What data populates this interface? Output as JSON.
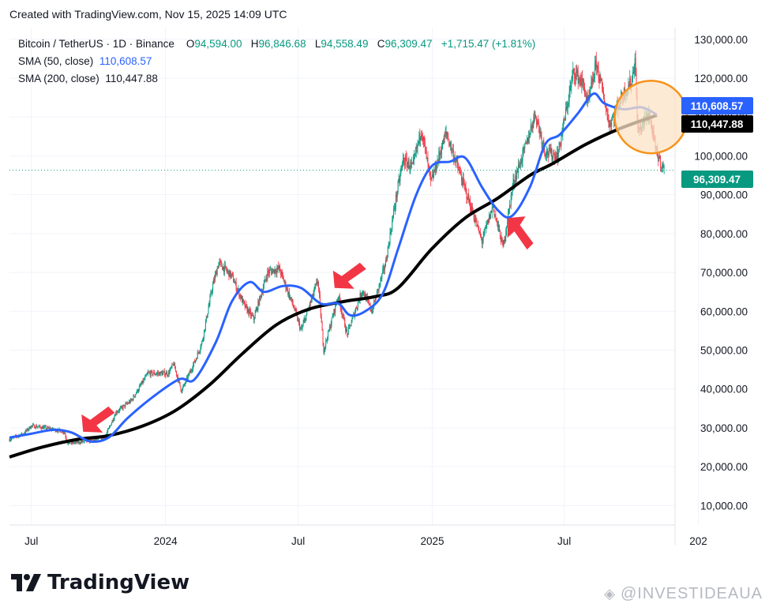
{
  "header": {
    "created": "Created with TradingView.com, Nov 15, 2025 14:09 UTC"
  },
  "legend": {
    "symbol": "Bitcoin / TetherUS · 1D · Binance",
    "o_label": "O",
    "o_value": "94,594.00",
    "h_label": "H",
    "h_value": "96,846.68",
    "l_label": "L",
    "l_value": "94,558.49",
    "c_label": "C",
    "c_value": "96,309.47",
    "change": "+1,715.47 (+1.81%)",
    "sma50_label": "SMA (50, close)",
    "sma50_value": "110,608.57",
    "sma200_label": "SMA (200, close)",
    "sma200_value": "110,447.88"
  },
  "footer": {
    "brand": "TradingView",
    "watermark": "@INVESTIDEAUA"
  },
  "colors": {
    "up": "#089981",
    "down": "#f23645",
    "sma50": "#2962ff",
    "sma200": "#000000",
    "arrow": "#f23645",
    "highlight_fill": "#fce3c6",
    "highlight_stroke": "#f7931a",
    "grid": "#f0f3fa",
    "price_line": "#089981"
  },
  "chart_data": {
    "type": "candlestick",
    "title": "Bitcoin / TetherUS · 1D · Binance",
    "ylim": [
      5000,
      133000
    ],
    "y_ticks": [
      10000,
      20000,
      30000,
      40000,
      50000,
      60000,
      70000,
      80000,
      90000,
      100000,
      110000,
      120000,
      130000
    ],
    "y_tick_labels": [
      "10,000.00",
      "20,000.00",
      "30,000.00",
      "40,000.00",
      "50,000.00",
      "60,000.00",
      "70,000.00",
      "80,000.00",
      "90,000.00",
      "100,000.00",
      "110,000.00",
      "120,000.00",
      "130,000.00"
    ],
    "x_range": [
      "2023-06-01",
      "2025-11-30"
    ],
    "x_ticks": [
      {
        "date": "2023-07-01",
        "label": "Jul"
      },
      {
        "date": "2024-01-01",
        "label": "2024"
      },
      {
        "date": "2024-07-01",
        "label": "Jul"
      },
      {
        "date": "2025-01-01",
        "label": "2025"
      },
      {
        "date": "2025-07-01",
        "label": "Jul"
      },
      {
        "date": "2026-01-01",
        "label": "202"
      }
    ],
    "price_path": [
      [
        "2023-06-01",
        27000
      ],
      [
        "2023-06-20",
        28500
      ],
      [
        "2023-07-01",
        30500
      ],
      [
        "2023-07-20",
        30000
      ],
      [
        "2023-08-15",
        29000
      ],
      [
        "2023-08-20",
        26000
      ],
      [
        "2023-09-15",
        26500
      ],
      [
        "2023-10-10",
        27500
      ],
      [
        "2023-10-25",
        34000
      ],
      [
        "2023-11-15",
        37000
      ],
      [
        "2023-12-08",
        44000
      ],
      [
        "2024-01-05",
        44000
      ],
      [
        "2024-01-12",
        46500
      ],
      [
        "2024-01-23",
        39500
      ],
      [
        "2024-02-10",
        47000
      ],
      [
        "2024-02-20",
        52000
      ],
      [
        "2024-03-05",
        66000
      ],
      [
        "2024-03-14",
        72500
      ],
      [
        "2024-04-01",
        69000
      ],
      [
        "2024-04-18",
        61500
      ],
      [
        "2024-05-01",
        58000
      ],
      [
        "2024-05-20",
        70000
      ],
      [
        "2024-06-05",
        71000
      ],
      [
        "2024-06-25",
        61000
      ],
      [
        "2024-07-05",
        55000
      ],
      [
        "2024-07-28",
        68000
      ],
      [
        "2024-08-05",
        50000
      ],
      [
        "2024-08-25",
        64000
      ],
      [
        "2024-09-06",
        54000
      ],
      [
        "2024-09-27",
        65500
      ],
      [
        "2024-10-10",
        60000
      ],
      [
        "2024-10-29",
        72500
      ],
      [
        "2024-11-12",
        89000
      ],
      [
        "2024-11-22",
        99000
      ],
      [
        "2024-12-05",
        97000
      ],
      [
        "2024-12-17",
        107000
      ],
      [
        "2024-12-30",
        93000
      ],
      [
        "2025-01-20",
        106000
      ],
      [
        "2025-02-05",
        97000
      ],
      [
        "2025-02-28",
        84000
      ],
      [
        "2025-03-10",
        78000
      ],
      [
        "2025-03-25",
        87000
      ],
      [
        "2025-04-08",
        76500
      ],
      [
        "2025-04-22",
        93000
      ],
      [
        "2025-05-10",
        103000
      ],
      [
        "2025-05-22",
        111000
      ],
      [
        "2025-06-05",
        101000
      ],
      [
        "2025-06-22",
        100000
      ],
      [
        "2025-07-14",
        122000
      ],
      [
        "2025-07-28",
        118000
      ],
      [
        "2025-08-02",
        113000
      ],
      [
        "2025-08-14",
        124000
      ],
      [
        "2025-09-01",
        108000
      ],
      [
        "2025-09-20",
        116000
      ],
      [
        "2025-10-01",
        119000
      ],
      [
        "2025-10-06",
        125000
      ],
      [
        "2025-10-10",
        106000
      ],
      [
        "2025-10-25",
        111000
      ],
      [
        "2025-11-04",
        101000
      ],
      [
        "2025-11-15",
        96309
      ]
    ],
    "sma50": [
      [
        "2023-06-01",
        27500
      ],
      [
        "2023-07-01",
        28500
      ],
      [
        "2023-08-01",
        29500
      ],
      [
        "2023-08-25",
        28800
      ],
      [
        "2023-09-20",
        26500
      ],
      [
        "2023-10-15",
        27500
      ],
      [
        "2023-11-10",
        32500
      ],
      [
        "2023-12-15",
        38000
      ],
      [
        "2024-01-20",
        42500
      ],
      [
        "2024-02-10",
        42500
      ],
      [
        "2024-03-10",
        52000
      ],
      [
        "2024-04-01",
        62500
      ],
      [
        "2024-04-25",
        67500
      ],
      [
        "2024-05-15",
        65000
      ],
      [
        "2024-06-10",
        66500
      ],
      [
        "2024-07-05",
        66000
      ],
      [
        "2024-08-01",
        62000
      ],
      [
        "2024-08-25",
        62000
      ],
      [
        "2024-09-10",
        59000
      ],
      [
        "2024-10-01",
        60000
      ],
      [
        "2024-10-25",
        64500
      ],
      [
        "2024-11-15",
        76000
      ],
      [
        "2024-12-10",
        90000
      ],
      [
        "2025-01-01",
        97500
      ],
      [
        "2025-01-25",
        98500
      ],
      [
        "2025-02-15",
        99500
      ],
      [
        "2025-03-10",
        92000
      ],
      [
        "2025-04-01",
        86000
      ],
      [
        "2025-04-20",
        84500
      ],
      [
        "2025-05-15",
        92000
      ],
      [
        "2025-06-05",
        103000
      ],
      [
        "2025-06-25",
        105500
      ],
      [
        "2025-07-20",
        111000
      ],
      [
        "2025-08-10",
        116000
      ],
      [
        "2025-08-25",
        113500
      ],
      [
        "2025-09-20",
        112000
      ],
      [
        "2025-10-15",
        112500
      ],
      [
        "2025-11-05",
        110608
      ]
    ],
    "sma200": [
      [
        "2023-06-01",
        22500
      ],
      [
        "2023-07-15",
        25000
      ],
      [
        "2023-09-01",
        27000
      ],
      [
        "2023-10-15",
        28000
      ],
      [
        "2023-12-01",
        30500
      ],
      [
        "2024-01-15",
        34500
      ],
      [
        "2024-03-01",
        41000
      ],
      [
        "2024-04-15",
        49000
      ],
      [
        "2024-06-01",
        56500
      ],
      [
        "2024-07-15",
        60500
      ],
      [
        "2024-09-01",
        62500
      ],
      [
        "2024-10-15",
        63800
      ],
      [
        "2024-11-15",
        66000
      ],
      [
        "2024-12-31",
        76000
      ],
      [
        "2025-02-15",
        84000
      ],
      [
        "2025-03-31",
        89000
      ],
      [
        "2025-05-15",
        95000
      ],
      [
        "2025-06-15",
        98000
      ],
      [
        "2025-07-31",
        103000
      ],
      [
        "2025-09-15",
        107000
      ],
      [
        "2025-11-05",
        110448
      ]
    ],
    "last_price": 96309.47,
    "price_labels": [
      {
        "value": 110608.57,
        "text": "110,608.57",
        "series": "sma50"
      },
      {
        "value": 110447.88,
        "text": "110,447.88",
        "series": "sma200"
      },
      {
        "value": 96309.47,
        "text": "96,309.47",
        "series": "last"
      }
    ],
    "annotations": {
      "arrows": [
        {
          "date": "2023-09-10",
          "value": 29000,
          "direction": "down-left"
        },
        {
          "date": "2024-08-20",
          "value": 66000,
          "direction": "down-left"
        },
        {
          "date": "2025-04-15",
          "value": 84000,
          "direction": "up-left"
        }
      ],
      "highlight": {
        "date": "2025-10-28",
        "value": 110000
      }
    }
  }
}
